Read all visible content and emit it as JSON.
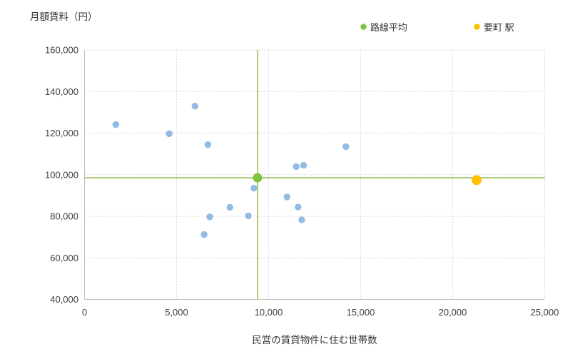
{
  "page": {
    "background": "#ffffff"
  },
  "chart_data": {
    "type": "scatter",
    "y_axis_title": "月額賃料（円）",
    "x_axis_title": "民営の賃貸物件に住む世帯数",
    "xlim": [
      0,
      25000
    ],
    "ylim": [
      40000,
      160000
    ],
    "x_ticks": [
      0,
      5000,
      10000,
      15000,
      20000,
      25000
    ],
    "y_ticks": [
      40000,
      60000,
      80000,
      100000,
      120000,
      140000,
      160000
    ],
    "grid": true,
    "gridline_color": "#d9d9d9",
    "axis_line_color": "#bfbfbf",
    "legend_position": "top",
    "legend": [
      {
        "label": "路線平均",
        "color": "#80c342"
      },
      {
        "label": "要町 駅",
        "color": "#ffc000"
      }
    ],
    "series": [
      {
        "id": "station-points",
        "color": "#92bbe2",
        "radius": 4.7,
        "points": [
          [
            1700,
            124100
          ],
          [
            4600,
            119700
          ],
          [
            6000,
            133000
          ],
          [
            6700,
            114500
          ],
          [
            6500,
            71200
          ],
          [
            6800,
            79700
          ],
          [
            7900,
            84300
          ],
          [
            8900,
            80200
          ],
          [
            9200,
            93500
          ],
          [
            11000,
            89300
          ],
          [
            11500,
            103900
          ],
          [
            11900,
            104500
          ],
          [
            11600,
            84400
          ],
          [
            11800,
            78300
          ],
          [
            14200,
            113500
          ]
        ]
      },
      {
        "id": "route-average",
        "label": "路線平均",
        "color": "#80c342",
        "radius": 6.5,
        "crosshair": true,
        "crosshair_color": "#9cc25e",
        "points": [
          [
            9400,
            98500
          ]
        ]
      },
      {
        "id": "kanamecho-station",
        "label": "要町 駅",
        "color": "#ffc000",
        "radius": 6.9,
        "points": [
          [
            21300,
            97400
          ]
        ]
      }
    ]
  }
}
